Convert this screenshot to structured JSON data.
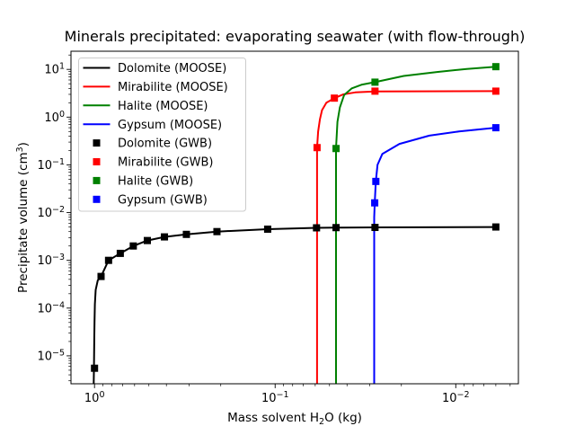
{
  "chart_data": {
    "type": "line",
    "title": "Minerals precipitated: evaporating seawater (with flow-through)",
    "xlabel": "Mass solvent H₂O (kg)",
    "ylabel": "Precipitate volume (cm³)",
    "xlabel_parts": {
      "pre": "Mass solvent H",
      "sub": "2",
      "post": "O (kg)"
    },
    "ylabel_parts": {
      "pre": "Precipitate volume (cm",
      "sup": "3",
      "post": ")"
    },
    "x_scale": "log",
    "x_reversed": true,
    "y_scale": "log",
    "xlim": [
      1.35,
      0.0045
    ],
    "ylim": [
      2.6e-06,
      24
    ],
    "x_major_tick_exponents": [
      0,
      -1,
      -2
    ],
    "y_major_tick_exponents": [
      1,
      0,
      -1,
      -2,
      -3,
      -4,
      -5
    ],
    "grid": false,
    "series": [
      {
        "name": "Dolomite (MOOSE)",
        "color": "#000000",
        "style": "line",
        "points": [
          [
            1.01,
            2.6e-06
          ],
          [
            1.007,
            6e-06
          ],
          [
            1.003,
            2e-05
          ],
          [
            1.0,
            5e-05
          ],
          [
            0.995,
            0.00012
          ],
          [
            0.985,
            0.00024
          ],
          [
            0.96,
            0.00038
          ],
          [
            0.92,
            0.00046
          ],
          [
            0.836,
            0.001
          ],
          [
            0.72,
            0.0014
          ],
          [
            0.61,
            0.002
          ],
          [
            0.51,
            0.0026
          ],
          [
            0.41,
            0.0031
          ],
          [
            0.31,
            0.0035
          ],
          [
            0.21,
            0.004
          ],
          [
            0.11,
            0.0045
          ],
          [
            0.059,
            0.0048
          ],
          [
            0.046,
            0.00485
          ],
          [
            0.028,
            0.0049
          ],
          [
            0.006,
            0.005
          ]
        ]
      },
      {
        "name": "Mirabilite (MOOSE)",
        "color": "#ff0000",
        "style": "line",
        "points": [
          [
            0.0586,
            2.6e-06
          ],
          [
            0.0586,
            0.229
          ],
          [
            0.0578,
            0.5
          ],
          [
            0.0565,
            0.9
          ],
          [
            0.055,
            1.4
          ],
          [
            0.052,
            2.0
          ],
          [
            0.047,
            2.5
          ],
          [
            0.042,
            3.0
          ],
          [
            0.036,
            3.3
          ],
          [
            0.028,
            3.45
          ],
          [
            0.006,
            3.5
          ]
        ]
      },
      {
        "name": "Halite (MOOSE)",
        "color": "#008000",
        "style": "line",
        "points": [
          [
            0.046,
            2.6e-06
          ],
          [
            0.046,
            0.222
          ],
          [
            0.0452,
            0.8
          ],
          [
            0.0438,
            1.6
          ],
          [
            0.0415,
            2.9
          ],
          [
            0.0376,
            4.0
          ],
          [
            0.033,
            4.8
          ],
          [
            0.028,
            5.4
          ],
          [
            0.0194,
            7.3
          ],
          [
            0.0127,
            8.8
          ],
          [
            0.0087,
            10.2
          ],
          [
            0.006,
            11.4
          ]
        ]
      },
      {
        "name": "Gypsum (MOOSE)",
        "color": "#0000ff",
        "style": "line",
        "points": [
          [
            0.0283,
            2.6e-06
          ],
          [
            0.0283,
            0.008
          ],
          [
            0.0281,
            0.016
          ],
          [
            0.0277,
            0.045
          ],
          [
            0.0271,
            0.1
          ],
          [
            0.0255,
            0.17
          ],
          [
            0.0205,
            0.275
          ],
          [
            0.014,
            0.41
          ],
          [
            0.0096,
            0.5
          ],
          [
            0.006,
            0.6
          ]
        ]
      },
      {
        "name": "Dolomite (GWB)",
        "color": "#000000",
        "style": "markers",
        "points": [
          [
            1.0,
            5.5e-06
          ],
          [
            0.92,
            0.00046
          ],
          [
            0.836,
            0.001
          ],
          [
            0.72,
            0.0014
          ],
          [
            0.61,
            0.002
          ],
          [
            0.51,
            0.0026
          ],
          [
            0.41,
            0.0031
          ],
          [
            0.31,
            0.0035
          ],
          [
            0.21,
            0.004
          ],
          [
            0.11,
            0.0045
          ],
          [
            0.059,
            0.0048
          ],
          [
            0.046,
            0.00485
          ],
          [
            0.028,
            0.0049
          ],
          [
            0.006,
            0.005
          ]
        ]
      },
      {
        "name": "Mirabilite (GWB)",
        "color": "#ff0000",
        "style": "markers",
        "points": [
          [
            0.0586,
            0.23
          ],
          [
            0.047,
            2.5
          ],
          [
            0.028,
            3.5
          ],
          [
            0.006,
            3.5
          ]
        ]
      },
      {
        "name": "Halite (GWB)",
        "color": "#008000",
        "style": "markers",
        "points": [
          [
            0.046,
            0.22
          ],
          [
            0.028,
            5.4
          ],
          [
            0.006,
            11.4
          ]
        ]
      },
      {
        "name": "Gypsum (GWB)",
        "color": "#0000ff",
        "style": "markers",
        "points": [
          [
            0.0281,
            0.016
          ],
          [
            0.0277,
            0.045
          ],
          [
            0.006,
            0.6
          ]
        ]
      }
    ],
    "legend": {
      "location": "upper left",
      "entries": [
        {
          "label": "Dolomite (MOOSE)",
          "color": "#000000",
          "symbol": "line"
        },
        {
          "label": "Mirabilite (MOOSE)",
          "color": "#ff0000",
          "symbol": "line"
        },
        {
          "label": "Halite (MOOSE)",
          "color": "#008000",
          "symbol": "line"
        },
        {
          "label": "Gypsum (MOOSE)",
          "color": "#0000ff",
          "symbol": "line"
        },
        {
          "label": "Dolomite (GWB)",
          "color": "#000000",
          "symbol": "square"
        },
        {
          "label": "Mirabilite (GWB)",
          "color": "#ff0000",
          "symbol": "square"
        },
        {
          "label": "Halite (GWB)",
          "color": "#008000",
          "symbol": "square"
        },
        {
          "label": "Gypsum (GWB)",
          "color": "#0000ff",
          "symbol": "square"
        }
      ]
    },
    "colors": {
      "axes": "#000000",
      "legend_border": "#cccccc",
      "background": "#ffffff"
    }
  }
}
